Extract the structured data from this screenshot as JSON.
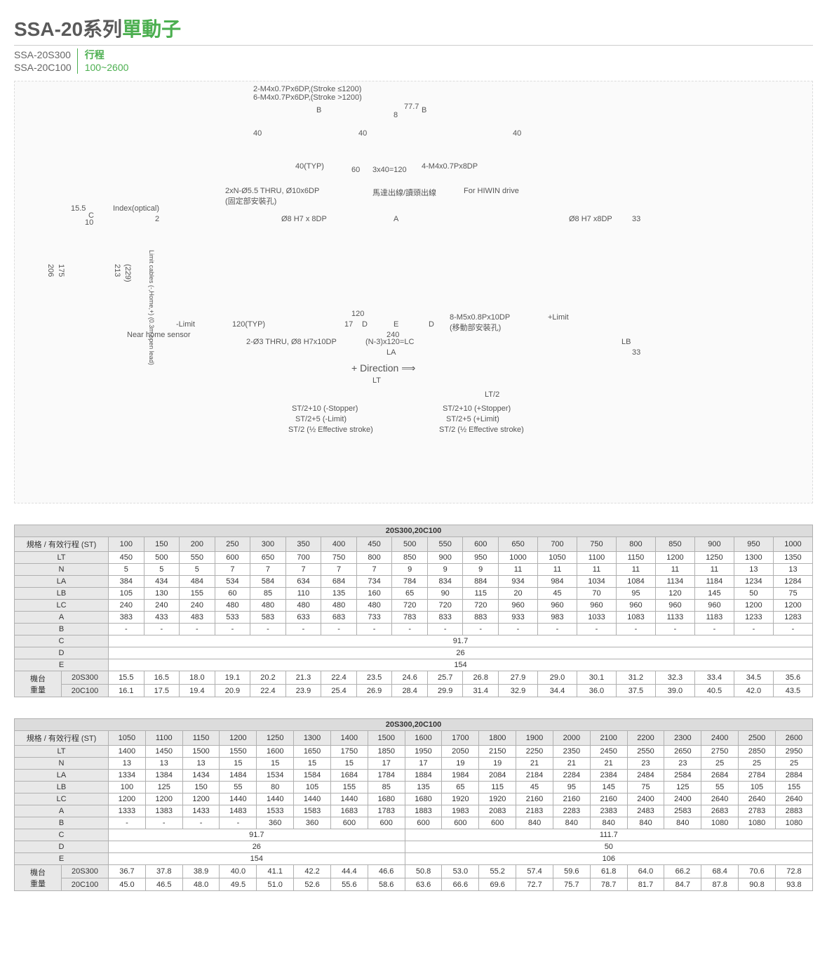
{
  "header": {
    "title_prefix": "SSA-20",
    "title_mid": "系列",
    "title_suffix": "單動子",
    "model1": "SSA-20S300",
    "model2": "SSA-20C100",
    "stroke_label": "行程",
    "stroke_range": "100~2600"
  },
  "diagram_labels": {
    "l1": "2-M4x0.7Px6DP,(Stroke ≤1200)",
    "l2": "6-M4x0.7Px6DP,(Stroke >1200)",
    "l3": "40",
    "l4": "40(TYP)",
    "l5": "60",
    "l6": "3x40=120",
    "l7": "4-M4x0.7Px8DP",
    "l8": "77.7",
    "l9": "2xN-Ø5.5 THRU, Ø10x6DP",
    "l10": "(固定部安裝孔)",
    "l11": "Index(optical)",
    "l12": "Ø8 H7 x 8DP",
    "l13": "馬達出線/讀頭出線",
    "l14": "For HIWIN drive",
    "l15": "Ø8 H7 x8DP",
    "l16": "Limit cables (-,Home,+) (0.3m open lead)",
    "l17": "Near home sensor",
    "l18": "-Limit",
    "l19": "+Limit",
    "l20": "120(TYP)",
    "l21": "2-Ø3 THRU, Ø8 H7x10DP",
    "l22": "120",
    "l23": "17",
    "l24": "240",
    "l25": "(N-3)x120=LC",
    "l26": "8-M5x0.8Px10DP",
    "l27": "(移動部安裝孔)",
    "l28": "LA",
    "l29": "LB",
    "l30": "+ Direction",
    "l31": "LT",
    "l32": "LT/2",
    "l33": "ST/2+10 (-Stopper)",
    "l34": "ST/2+10 (+Stopper)",
    "l35": "ST/2+5 (-Limit)",
    "l36": "ST/2+5 (+Limit)",
    "l37": "ST/2 (½ Effective stroke)",
    "l38": "ST/2 (½ Effective stroke)",
    "dim_206": "206",
    "dim_175": "175",
    "dim_213": "213",
    "dim_229": "(229)",
    "dim_155": "15.5",
    "dim_10": "10",
    "dim_2": "2",
    "dim_33": "33",
    "dim_8": "8",
    "dim_c": "C",
    "dim_b": "B",
    "dim_a": "A",
    "dim_d": "D",
    "dim_e": "E"
  },
  "table1": {
    "title": "20S300,20C100",
    "hdr_spec": "規格 / 有效行程 (ST)",
    "weight_group": "機台\n重量",
    "cols": [
      "100",
      "150",
      "200",
      "250",
      "300",
      "350",
      "400",
      "450",
      "500",
      "550",
      "600",
      "650",
      "700",
      "750",
      "800",
      "850",
      "900",
      "950",
      "1000"
    ],
    "rows": [
      {
        "label": "LT",
        "v": [
          "450",
          "500",
          "550",
          "600",
          "650",
          "700",
          "750",
          "800",
          "850",
          "900",
          "950",
          "1000",
          "1050",
          "1100",
          "1150",
          "1200",
          "1250",
          "1300",
          "1350"
        ]
      },
      {
        "label": "N",
        "v": [
          "5",
          "5",
          "5",
          "7",
          "7",
          "7",
          "7",
          "7",
          "9",
          "9",
          "9",
          "11",
          "11",
          "11",
          "11",
          "11",
          "11",
          "13",
          "13"
        ]
      },
      {
        "label": "LA",
        "v": [
          "384",
          "434",
          "484",
          "534",
          "584",
          "634",
          "684",
          "734",
          "784",
          "834",
          "884",
          "934",
          "984",
          "1034",
          "1084",
          "1134",
          "1184",
          "1234",
          "1284"
        ]
      },
      {
        "label": "LB",
        "v": [
          "105",
          "130",
          "155",
          "60",
          "85",
          "110",
          "135",
          "160",
          "65",
          "90",
          "115",
          "20",
          "45",
          "70",
          "95",
          "120",
          "145",
          "50",
          "75"
        ]
      },
      {
        "label": "LC",
        "v": [
          "240",
          "240",
          "240",
          "480",
          "480",
          "480",
          "480",
          "480",
          "720",
          "720",
          "720",
          "960",
          "960",
          "960",
          "960",
          "960",
          "960",
          "1200",
          "1200"
        ]
      },
      {
        "label": "A",
        "v": [
          "383",
          "433",
          "483",
          "533",
          "583",
          "633",
          "683",
          "733",
          "783",
          "833",
          "883",
          "933",
          "983",
          "1033",
          "1083",
          "1133",
          "1183",
          "1233",
          "1283"
        ]
      },
      {
        "label": "B",
        "v": [
          "-",
          "-",
          "-",
          "-",
          "-",
          "-",
          "-",
          "-",
          "-",
          "-",
          "-",
          "-",
          "-",
          "-",
          "-",
          "-",
          "-",
          "-",
          "-"
        ]
      }
    ],
    "span_rows": [
      {
        "label": "C",
        "val": "91.7",
        "span": 19
      },
      {
        "label": "D",
        "val": "26",
        "span": 19
      },
      {
        "label": "E",
        "val": "154",
        "span": 19
      }
    ],
    "weight": [
      {
        "label": "20S300",
        "v": [
          "15.5",
          "16.5",
          "18.0",
          "19.1",
          "20.2",
          "21.3",
          "22.4",
          "23.5",
          "24.6",
          "25.7",
          "26.8",
          "27.9",
          "29.0",
          "30.1",
          "31.2",
          "32.3",
          "33.4",
          "34.5",
          "35.6"
        ]
      },
      {
        "label": "20C100",
        "v": [
          "16.1",
          "17.5",
          "19.4",
          "20.9",
          "22.4",
          "23.9",
          "25.4",
          "26.9",
          "28.4",
          "29.9",
          "31.4",
          "32.9",
          "34.4",
          "36.0",
          "37.5",
          "39.0",
          "40.5",
          "42.0",
          "43.5"
        ]
      }
    ]
  },
  "table2": {
    "title": "20S300,20C100",
    "hdr_spec": "規格 / 有效行程 (ST)",
    "weight_group": "機台\n重量",
    "cols": [
      "1050",
      "1100",
      "1150",
      "1200",
      "1250",
      "1300",
      "1400",
      "1500",
      "1600",
      "1700",
      "1800",
      "1900",
      "2000",
      "2100",
      "2200",
      "2300",
      "2400",
      "2500",
      "2600"
    ],
    "rows": [
      {
        "label": "LT",
        "v": [
          "1400",
          "1450",
          "1500",
          "1550",
          "1600",
          "1650",
          "1750",
          "1850",
          "1950",
          "2050",
          "2150",
          "2250",
          "2350",
          "2450",
          "2550",
          "2650",
          "2750",
          "2850",
          "2950"
        ]
      },
      {
        "label": "N",
        "v": [
          "13",
          "13",
          "13",
          "15",
          "15",
          "15",
          "15",
          "17",
          "17",
          "19",
          "19",
          "21",
          "21",
          "21",
          "23",
          "23",
          "25",
          "25",
          "25"
        ]
      },
      {
        "label": "LA",
        "v": [
          "1334",
          "1384",
          "1434",
          "1484",
          "1534",
          "1584",
          "1684",
          "1784",
          "1884",
          "1984",
          "2084",
          "2184",
          "2284",
          "2384",
          "2484",
          "2584",
          "2684",
          "2784",
          "2884"
        ]
      },
      {
        "label": "LB",
        "v": [
          "100",
          "125",
          "150",
          "55",
          "80",
          "105",
          "155",
          "85",
          "135",
          "65",
          "115",
          "45",
          "95",
          "145",
          "75",
          "125",
          "55",
          "105",
          "155"
        ]
      },
      {
        "label": "LC",
        "v": [
          "1200",
          "1200",
          "1200",
          "1440",
          "1440",
          "1440",
          "1440",
          "1680",
          "1680",
          "1920",
          "1920",
          "2160",
          "2160",
          "2160",
          "2400",
          "2400",
          "2640",
          "2640",
          "2640"
        ]
      },
      {
        "label": "A",
        "v": [
          "1333",
          "1383",
          "1433",
          "1483",
          "1533",
          "1583",
          "1683",
          "1783",
          "1883",
          "1983",
          "2083",
          "2183",
          "2283",
          "2383",
          "2483",
          "2583",
          "2683",
          "2783",
          "2883"
        ]
      },
      {
        "label": "B",
        "v": [
          "-",
          "-",
          "-",
          "-",
          "360",
          "360",
          "600",
          "600",
          "600",
          "600",
          "600",
          "840",
          "840",
          "840",
          "840",
          "840",
          "1080",
          "1080",
          "1080"
        ]
      }
    ],
    "split_rows": [
      {
        "label": "C",
        "left": {
          "val": "91.7",
          "span": 8
        },
        "right": {
          "val": "111.7",
          "span": 11
        }
      },
      {
        "label": "D",
        "left": {
          "val": "26",
          "span": 8
        },
        "right": {
          "val": "50",
          "span": 11
        }
      },
      {
        "label": "E",
        "left": {
          "val": "154",
          "span": 8
        },
        "right": {
          "val": "106",
          "span": 11
        }
      }
    ],
    "weight": [
      {
        "label": "20S300",
        "v": [
          "36.7",
          "37.8",
          "38.9",
          "40.0",
          "41.1",
          "42.2",
          "44.4",
          "46.6",
          "50.8",
          "53.0",
          "55.2",
          "57.4",
          "59.6",
          "61.8",
          "64.0",
          "66.2",
          "68.4",
          "70.6",
          "72.8"
        ]
      },
      {
        "label": "20C100",
        "v": [
          "45.0",
          "46.5",
          "48.0",
          "49.5",
          "51.0",
          "52.6",
          "55.6",
          "58.6",
          "63.6",
          "66.6",
          "69.6",
          "72.7",
          "75.7",
          "78.7",
          "81.7",
          "84.7",
          "87.8",
          "90.8",
          "93.8"
        ]
      }
    ]
  },
  "colors": {
    "accent": "#4caf50",
    "border": "#b0b0b0",
    "header_bg": "#e8e8e8"
  }
}
